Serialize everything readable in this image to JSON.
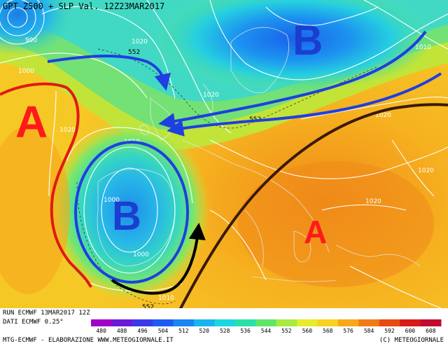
{
  "header": {
    "title": "GPT Z500 + SLP Val. 12Z23MAR2017"
  },
  "footer": {
    "run_line": "RUN ECMWF 13MAR2017 12Z",
    "data_line": "DATI ECMWF 0.25°",
    "credit_left": "MTG-ECMWF - ELABORAZIONE WWW.METEOGIORNALE.IT",
    "credit_right": "(C) METEOGIORNALE"
  },
  "colors": {
    "high_letter": "#ff1a1a",
    "low_letter": "#1a3fd0",
    "arrow_blue": "#1f3fe0",
    "arrow_black": "#000000",
    "arrow_brown": "#3a1a08",
    "red_boundary": "#e01a10"
  },
  "map_labels": {
    "highs": [
      "A",
      "A"
    ],
    "lows": [
      "B",
      "B"
    ],
    "isobars": [
      "990",
      "1000",
      "1020",
      "1020",
      "1010",
      "1020",
      "1010",
      "1000",
      "1000",
      "1020",
      "1020",
      "1020",
      "1010",
      "1010"
    ],
    "heights": [
      "552",
      "552",
      "552"
    ]
  },
  "legend": {
    "values": [
      "480",
      "488",
      "496",
      "504",
      "512",
      "520",
      "528",
      "536",
      "544",
      "552",
      "560",
      "568",
      "576",
      "584",
      "592",
      "600",
      "608"
    ],
    "colors": [
      "#a000c8",
      "#6a1ad8",
      "#3a3ae8",
      "#1f5af2",
      "#1a86f2",
      "#19b4f0",
      "#19d7e0",
      "#2be0a8",
      "#5ee66a",
      "#a8ea3e",
      "#e6ec2a",
      "#f8d21e",
      "#f8a81a",
      "#f07c16",
      "#e84a12",
      "#d81a18",
      "#c00c30"
    ]
  }
}
